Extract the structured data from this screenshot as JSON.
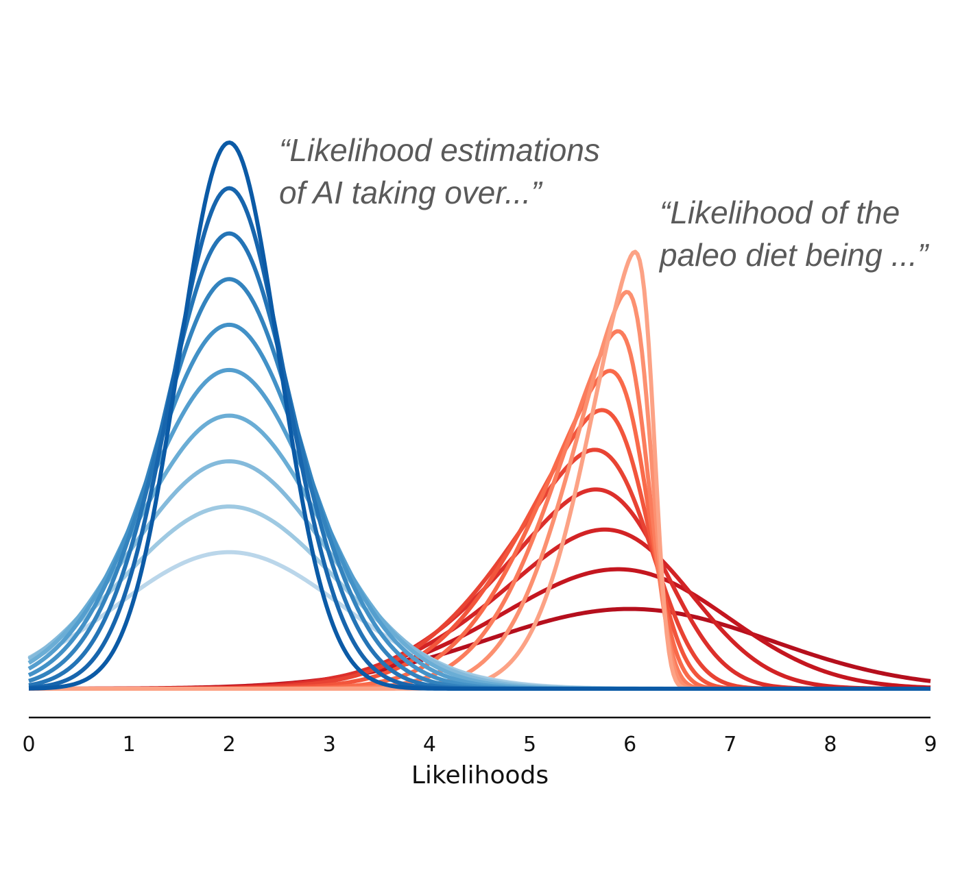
{
  "chart_data": {
    "type": "line",
    "title": "",
    "xlabel": "Likelihoods",
    "ylabel": "",
    "xlim": [
      0,
      9
    ],
    "ylim": [
      0,
      1.28
    ],
    "x_ticks": [
      "0",
      "1",
      "2",
      "3",
      "4",
      "5",
      "6",
      "7",
      "8",
      "9"
    ],
    "grid": false,
    "legend": "none",
    "annotations": [
      {
        "lines": [
          "“Likelihood estimations",
          "of AI taking over...”"
        ]
      },
      {
        "lines": [
          "“Likelihood of the",
          "paleo diet being ...”"
        ]
      }
    ],
    "groups": [
      {
        "distribution": "normal",
        "mean": 2.0,
        "series": [
          {
            "sigma": 0.5,
            "peak": 1.28,
            "color": "#0b5aa6"
          },
          {
            "sigma": 0.57,
            "peak": 1.173,
            "color": "#1765ad"
          },
          {
            "sigma": 0.64,
            "peak": 1.067,
            "color": "#2474b6"
          },
          {
            "sigma": 0.71,
            "peak": 0.96,
            "color": "#3383be"
          },
          {
            "sigma": 0.78,
            "peak": 0.853,
            "color": "#4291c7"
          },
          {
            "sigma": 0.85,
            "peak": 0.747,
            "color": "#549ece"
          },
          {
            "sigma": 0.92,
            "peak": 0.64,
            "color": "#6aadd5"
          },
          {
            "sigma": 0.99,
            "peak": 0.533,
            "color": "#84badb"
          },
          {
            "sigma": 1.06,
            "peak": 0.427,
            "color": "#9ec9e2"
          },
          {
            "sigma": 1.13,
            "peak": 0.32,
            "color": "#bad6ea"
          }
        ]
      },
      {
        "distribution": "skew-normal",
        "series": [
          {
            "mode": 6.05,
            "peak": 1.024,
            "color": "#fca285"
          },
          {
            "mode": 5.97,
            "peak": 0.93,
            "color": "#fc9070"
          },
          {
            "mode": 5.88,
            "peak": 0.838,
            "color": "#fb7c5c"
          },
          {
            "mode": 5.8,
            "peak": 0.745,
            "color": "#f96a4a"
          },
          {
            "mode": 5.72,
            "peak": 0.653,
            "color": "#f2553c"
          },
          {
            "mode": 5.65,
            "peak": 0.56,
            "color": "#e84333"
          },
          {
            "mode": 5.66,
            "peak": 0.467,
            "color": "#dc2f2b"
          },
          {
            "mode": 5.75,
            "peak": 0.373,
            "color": "#d22325"
          },
          {
            "mode": 5.88,
            "peak": 0.28,
            "color": "#c4161f"
          },
          {
            "mode": 6.0,
            "peak": 0.187,
            "color": "#b50f1d"
          }
        ]
      }
    ]
  }
}
